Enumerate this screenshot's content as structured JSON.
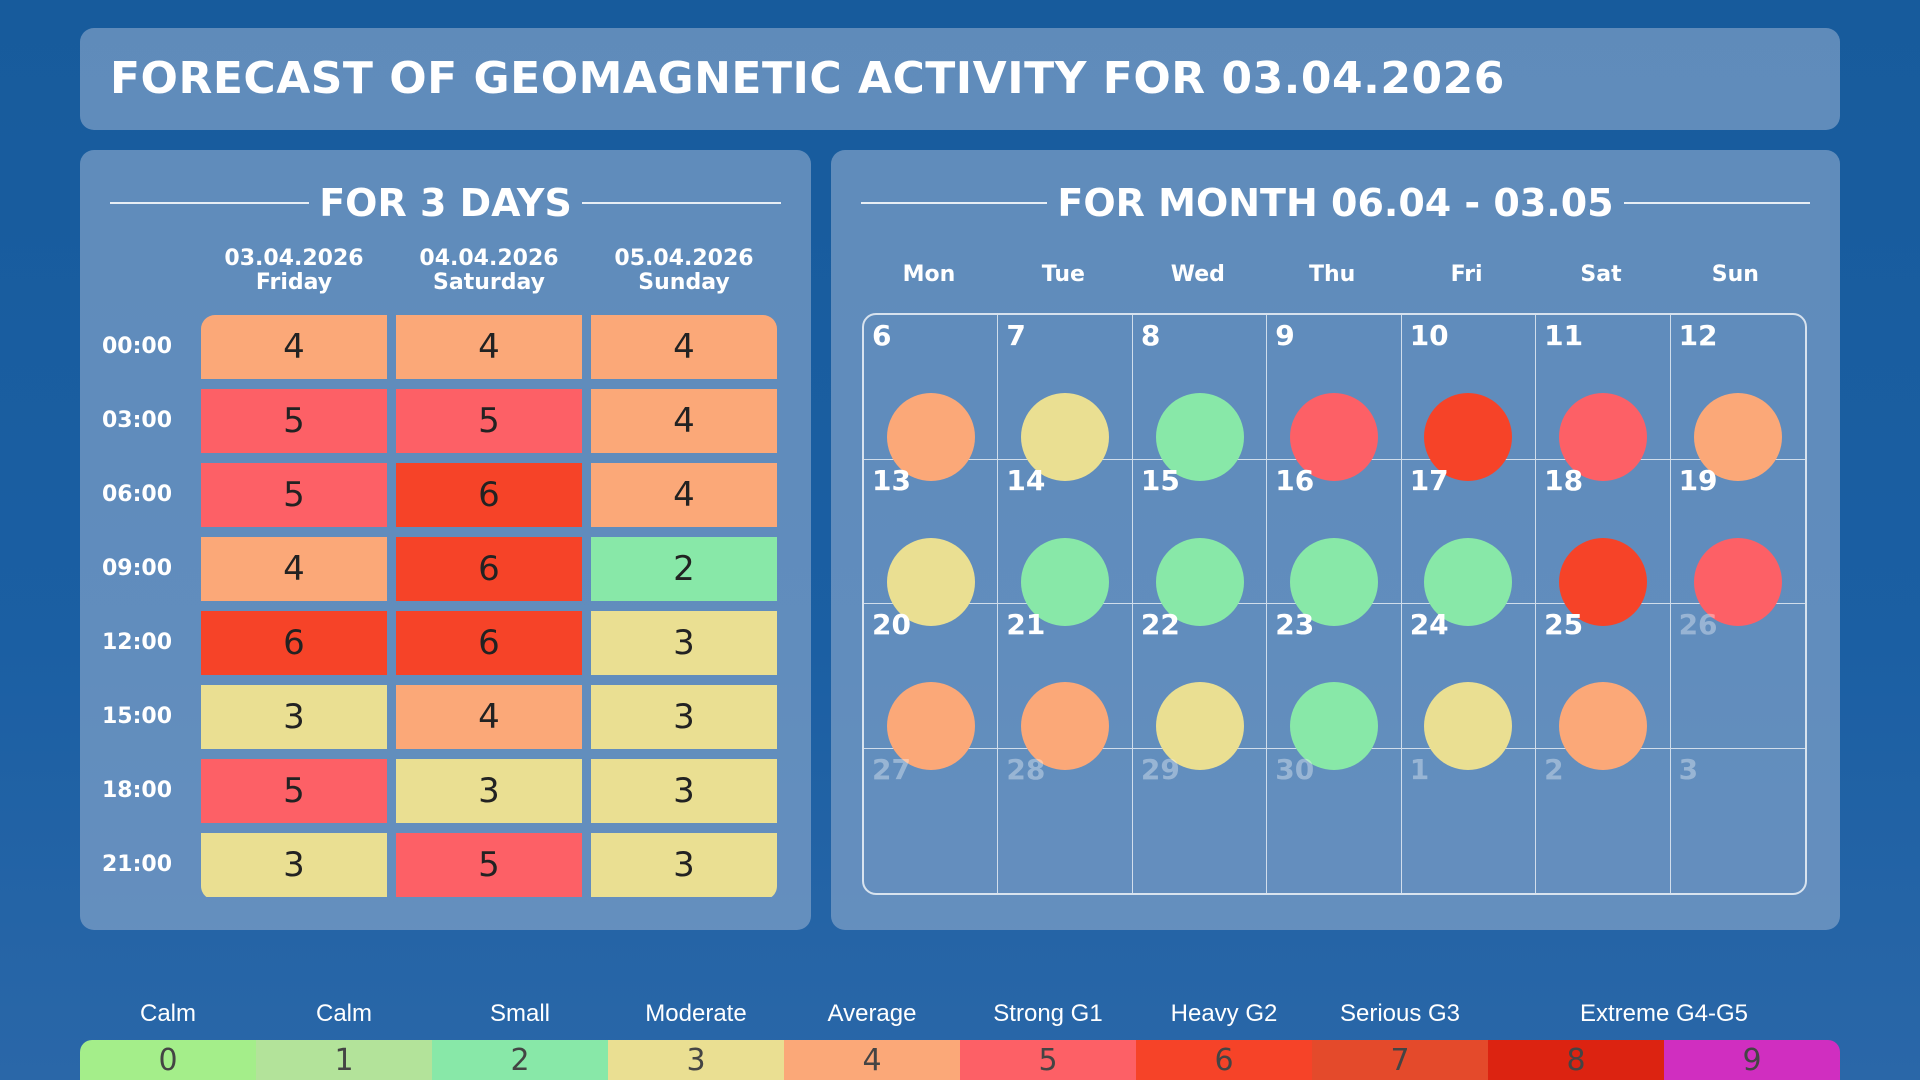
{
  "title": "FORECAST OF GEOMAGNETIC ACTIVITY FOR 03.04.2026",
  "colors": {
    "0": "#a4ee8a",
    "1": "#b3e39a",
    "2": "#88e8a8",
    "3": "#eadf92",
    "4": "#fba878",
    "5": "#fd6066",
    "6": "#f64328",
    "7": "#e44a2b",
    "8": "#dc2311",
    "9": "#d02ec0"
  },
  "three_days": {
    "title": "FOR 3 DAYS",
    "days": [
      {
        "date": "03.04.2026",
        "weekday": "Friday"
      },
      {
        "date": "04.04.2026",
        "weekday": "Saturday"
      },
      {
        "date": "05.04.2026",
        "weekday": "Sunday"
      }
    ],
    "times": [
      "00:00",
      "03:00",
      "06:00",
      "09:00",
      "12:00",
      "15:00",
      "18:00",
      "21:00"
    ],
    "values": [
      [
        4,
        4,
        4
      ],
      [
        5,
        5,
        4
      ],
      [
        5,
        6,
        4
      ],
      [
        4,
        6,
        2
      ],
      [
        6,
        6,
        3
      ],
      [
        3,
        4,
        3
      ],
      [
        5,
        3,
        3
      ],
      [
        3,
        5,
        3
      ]
    ]
  },
  "month": {
    "title": "FOR MONTH 06.04 - 03.05",
    "weekdays": [
      "Mon",
      "Tue",
      "Wed",
      "Thu",
      "Fri",
      "Sat",
      "Sun"
    ],
    "days": [
      {
        "n": "6",
        "level": 4
      },
      {
        "n": "7",
        "level": 3
      },
      {
        "n": "8",
        "level": 2
      },
      {
        "n": "9",
        "level": 5
      },
      {
        "n": "10",
        "level": 6
      },
      {
        "n": "11",
        "level": 5
      },
      {
        "n": "12",
        "level": 4
      },
      {
        "n": "13",
        "level": 3
      },
      {
        "n": "14",
        "level": 2
      },
      {
        "n": "15",
        "level": 2
      },
      {
        "n": "16",
        "level": 2
      },
      {
        "n": "17",
        "level": 2
      },
      {
        "n": "18",
        "level": 6
      },
      {
        "n": "19",
        "level": 5
      },
      {
        "n": "20",
        "level": 4
      },
      {
        "n": "21",
        "level": 4
      },
      {
        "n": "22",
        "level": 3
      },
      {
        "n": "23",
        "level": 2
      },
      {
        "n": "24",
        "level": 3
      },
      {
        "n": "25",
        "level": 4
      },
      {
        "n": "26",
        "level": null
      },
      {
        "n": "27",
        "level": null
      },
      {
        "n": "28",
        "level": null
      },
      {
        "n": "29",
        "level": null
      },
      {
        "n": "30",
        "level": null
      },
      {
        "n": "1",
        "level": null
      },
      {
        "n": "2",
        "level": null
      },
      {
        "n": "3",
        "level": null
      }
    ]
  },
  "legend": {
    "labels": [
      "Calm",
      "Calm",
      "Small",
      "Moderate",
      "Average",
      "Strong G1",
      "Heavy G2",
      "Serious G3",
      "Extreme G4-G5"
    ],
    "levels": [
      "0",
      "1",
      "2",
      "3",
      "4",
      "5",
      "6",
      "7",
      "8",
      "9"
    ]
  }
}
